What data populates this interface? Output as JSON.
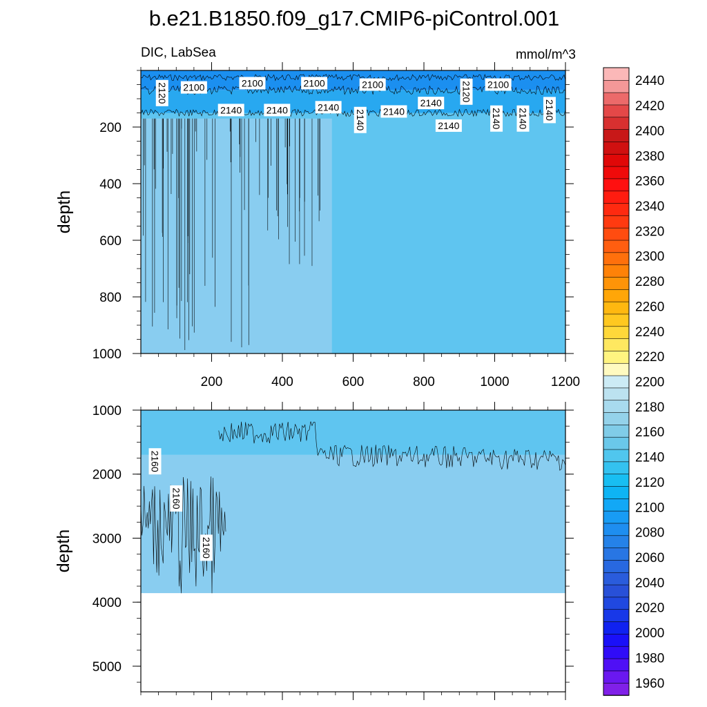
{
  "chart_data": {
    "type": "heatmap",
    "title": "b.e21.B1850.f09_g17.CMIP6-piControl.001",
    "variable_label": "DIC, LabSea",
    "units_label": "mmol/m^3",
    "panels": [
      {
        "name": "upper",
        "ylabel": "depth",
        "xlim": [
          0,
          1200
        ],
        "ylim": [
          0,
          1000
        ],
        "x_ticks": [
          "200",
          "400",
          "600",
          "800",
          "1000",
          "1200"
        ],
        "x_tick_values": [
          200,
          400,
          600,
          800,
          1000,
          1200
        ],
        "y_ticks": [
          "200",
          "400",
          "600",
          "800",
          "1000"
        ],
        "y_tick_values": [
          200,
          400,
          600,
          800,
          1000
        ],
        "fill_regions": [
          {
            "level": "2100-2120",
            "color": "#1b8ff0",
            "depth_top": 0,
            "depth_bottom": 70
          },
          {
            "level": "2120-2140",
            "color": "#28a8f0",
            "depth_top": 70,
            "depth_bottom": 150
          },
          {
            "level": "2140-2150",
            "color": "#5fc5f0",
            "depth_top": 150,
            "depth_bottom": 1000
          },
          {
            "level": "2150-2160",
            "color": "#89cdf0",
            "x_range": [
              0,
              540
            ],
            "depth_top": 170,
            "depth_bottom": 1000
          }
        ],
        "contour_labels": [
          {
            "text": "2120",
            "x": 60,
            "depth": 80,
            "rotated": true
          },
          {
            "text": "2100",
            "x": 150,
            "depth": 60
          },
          {
            "text": "2100",
            "x": 315,
            "depth": 45
          },
          {
            "text": "2100",
            "x": 490,
            "depth": 45
          },
          {
            "text": "2100",
            "x": 655,
            "depth": 50
          },
          {
            "text": "2120",
            "x": 920,
            "depth": 75,
            "rotated": true
          },
          {
            "text": "2100",
            "x": 1010,
            "depth": 50
          },
          {
            "text": "2140",
            "x": 255,
            "depth": 140
          },
          {
            "text": "2140",
            "x": 385,
            "depth": 140
          },
          {
            "text": "2140",
            "x": 530,
            "depth": 130
          },
          {
            "text": "2140",
            "x": 620,
            "depth": 175,
            "rotated": true
          },
          {
            "text": "2140",
            "x": 715,
            "depth": 145
          },
          {
            "text": "2140",
            "x": 820,
            "depth": 115
          },
          {
            "text": "2140",
            "x": 870,
            "depth": 195
          },
          {
            "text": "2140",
            "x": 1005,
            "depth": 170,
            "rotated": true
          },
          {
            "text": "2140",
            "x": 1080,
            "depth": 170,
            "rotated": true
          },
          {
            "text": "2140",
            "x": 1155,
            "depth": 140,
            "rotated": true
          }
        ]
      },
      {
        "name": "lower",
        "ylabel": "depth",
        "xlim": [
          0,
          1200
        ],
        "ylim": [
          1000,
          5400
        ],
        "x_ticks": [],
        "y_ticks": [
          "1000",
          "2000",
          "3000",
          "4000",
          "5000"
        ],
        "y_tick_values": [
          1000,
          2000,
          3000,
          4000,
          5000
        ],
        "fill_regions": [
          {
            "level": "2140-2150",
            "color": "#5fc5f0",
            "depth_top": 1000,
            "depth_bottom": 1700
          },
          {
            "level": "2150-2160",
            "color": "#89cdf0",
            "depth_top": 1700,
            "depth_bottom": 3860
          },
          {
            "level": "missing",
            "color": "#ffffff",
            "depth_top": 3860,
            "depth_bottom": 5400
          }
        ],
        "contour_labels": [
          {
            "text": "2160",
            "x": 40,
            "depth": 1800,
            "rotated": true
          },
          {
            "text": "2160",
            "x": 100,
            "depth": 2380,
            "rotated": true
          },
          {
            "text": "2160",
            "x": 185,
            "depth": 3150,
            "rotated": true
          }
        ]
      }
    ],
    "colorbar": {
      "levels": [
        1950,
        1960,
        1970,
        1980,
        1990,
        2000,
        2010,
        2020,
        2030,
        2040,
        2050,
        2060,
        2070,
        2080,
        2090,
        2100,
        2110,
        2120,
        2130,
        2140,
        2150,
        2160,
        2170,
        2180,
        2190,
        2200,
        2210,
        2220,
        2230,
        2240,
        2250,
        2260,
        2270,
        2280,
        2290,
        2300,
        2310,
        2320,
        2330,
        2340,
        2350,
        2360,
        2370,
        2380,
        2390,
        2400,
        2410,
        2420,
        2430,
        2440,
        2450
      ],
      "tick_labels": [
        "1960",
        "1980",
        "2000",
        "2020",
        "2040",
        "2060",
        "2080",
        "2100",
        "2120",
        "2140",
        "2160",
        "2180",
        "2200",
        "2220",
        "2240",
        "2260",
        "2280",
        "2300",
        "2320",
        "2340",
        "2360",
        "2380",
        "2400",
        "2420",
        "2440"
      ],
      "tick_values": [
        1960,
        1980,
        2000,
        2020,
        2040,
        2060,
        2080,
        2100,
        2120,
        2140,
        2160,
        2180,
        2200,
        2220,
        2240,
        2260,
        2280,
        2300,
        2320,
        2340,
        2360,
        2380,
        2400,
        2420,
        2440
      ],
      "colors": [
        "#8020e8",
        "#6a18f0",
        "#4f10f5",
        "#300cf8",
        "#1a10f8",
        "#1022f0",
        "#1838e8",
        "#2048e0",
        "#2850d8",
        "#2a5cdc",
        "#2868e0",
        "#2876e4",
        "#2582e8",
        "#1e8ef0",
        "#189cf4",
        "#12a8f6",
        "#0eb4f4",
        "#18bef2",
        "#34c2f0",
        "#50c6ee",
        "#6ac8ea",
        "#80cce8",
        "#94d2ea",
        "#a8daee",
        "#bce2f0",
        "#ccebf5",
        "#fffac0",
        "#fff480",
        "#ffe860",
        "#ffd83a",
        "#ffc820",
        "#ffb810",
        "#ffa608",
        "#ff9408",
        "#ff8208",
        "#ff700c",
        "#ff5e10",
        "#ff4c10",
        "#ff3a10",
        "#ff2a10",
        "#ff1c10",
        "#ff1010",
        "#f00a0a",
        "#e00808",
        "#d01010",
        "#c81818",
        "#d83030",
        "#e44848",
        "#ec6a6a",
        "#f49898",
        "#fbb8b8"
      ]
    }
  }
}
